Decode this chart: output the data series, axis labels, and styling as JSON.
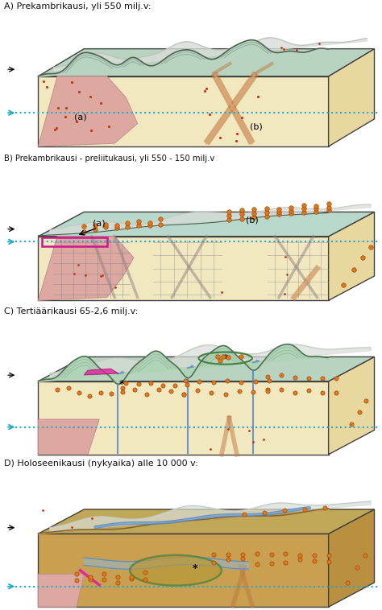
{
  "title_A": "A) Prekambrikausi, yli 550 milj.v:",
  "title_B": "B) Prekambrikausi - preliitukausi, yli 550 - 150 milj.v",
  "title_C": "C) Tertiäärikausi 65-2,6 milj.v:",
  "title_D": "D) Holoseenikausi (nykyaika) alle 10 000 v:",
  "bg": "#ffffff",
  "cream": "#f2e8c0",
  "cream_side": "#e8d8a0",
  "teal_top": "#b8d4c0",
  "pink": "#dca8a0",
  "orange": "#e07818",
  "orange_edge": "#904010",
  "fault_brown": "#c07840",
  "fault_light": "#dca878",
  "blue_dot": "#20aacc",
  "grid_gray": "#707070",
  "pink_box_color": "#cc1890",
  "green_line": "#408040",
  "river_blue": "#5080c0",
  "brown_fill": "#c09050",
  "magenta": "#e020a0",
  "gray_line": "#c0c8c0"
}
